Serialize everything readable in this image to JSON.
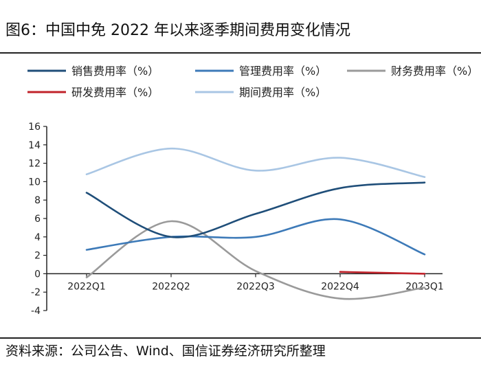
{
  "figure": {
    "title": "图6：中国中免 2022 年以来逐季期间费用变化情况",
    "source": "资料来源：公司公告、Wind、国信证券经济研究所整理"
  },
  "chart_data": {
    "type": "line",
    "title": "图6：中国中免 2022 年以来逐季期间费用变化情况",
    "categories": [
      "2022Q1",
      "2022Q2",
      "2022Q3",
      "2022Q4",
      "2023Q1"
    ],
    "ylim": [
      -4,
      16
    ],
    "yticks": [
      "16",
      "14",
      "12",
      "10",
      "8",
      "6",
      "4",
      "2",
      "0",
      "-2",
      "-4"
    ],
    "xlabel": "",
    "ylabel": "",
    "legend_position": "top",
    "series": [
      {
        "name": "销售费用率（%）",
        "color": "#1f4e79",
        "values": [
          8.8,
          4.0,
          6.5,
          9.3,
          9.9
        ]
      },
      {
        "name": "管理费用率（%）",
        "color": "#3d7ab8",
        "values": [
          2.6,
          4.0,
          4.0,
          5.9,
          2.1
        ]
      },
      {
        "name": "财务费用率（%）",
        "color": "#9a9a9a",
        "values": [
          -0.4,
          5.7,
          0.3,
          -2.7,
          -1.5
        ]
      },
      {
        "name": "研发费用率（%）",
        "color": "#c0222a",
        "values": [
          null,
          null,
          null,
          0.2,
          0.0
        ]
      },
      {
        "name": "期间费用率（%）",
        "color": "#a9c6e4",
        "values": [
          10.8,
          13.6,
          11.2,
          12.6,
          10.5
        ]
      }
    ]
  }
}
